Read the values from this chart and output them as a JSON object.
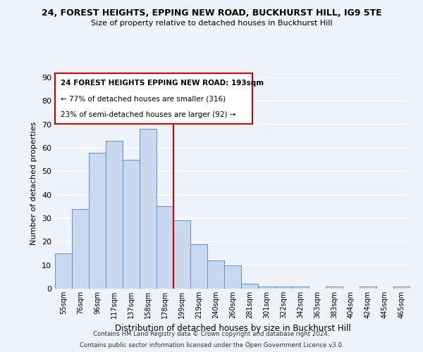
{
  "title": "24, FOREST HEIGHTS, EPPING NEW ROAD, BUCKHURST HILL, IG9 5TE",
  "subtitle": "Size of property relative to detached houses in Buckhurst Hill",
  "xlabel": "Distribution of detached houses by size in Buckhurst Hill",
  "ylabel": "Number of detached properties",
  "bar_color": "#c8d8ee",
  "bar_edge_color": "#6090c0",
  "bins": [
    "55sqm",
    "76sqm",
    "96sqm",
    "117sqm",
    "137sqm",
    "158sqm",
    "178sqm",
    "199sqm",
    "219sqm",
    "240sqm",
    "260sqm",
    "281sqm",
    "301sqm",
    "322sqm",
    "342sqm",
    "363sqm",
    "383sqm",
    "404sqm",
    "424sqm",
    "445sqm",
    "465sqm"
  ],
  "values": [
    15,
    34,
    58,
    63,
    55,
    68,
    35,
    29,
    19,
    12,
    10,
    2,
    1,
    1,
    1,
    0,
    1,
    0,
    1,
    0,
    1
  ],
  "ylim": [
    0,
    90
  ],
  "yticks": [
    0,
    10,
    20,
    30,
    40,
    50,
    60,
    70,
    80,
    90
  ],
  "annotation_line1": "24 FOREST HEIGHTS EPPING NEW ROAD: 193sqm",
  "annotation_line2": "← 77% of detached houses are smaller (316)",
  "annotation_line3": "23% of semi-detached houses are larger (92) →",
  "footer_line1": "Contains HM Land Registry data © Crown copyright and database right 2024.",
  "footer_line2": "Contains public sector information licensed under the Open Government Licence v3.0.",
  "background_color": "#eef2fb",
  "grid_color": "#ffffff",
  "annotation_box_color": "#ffffff",
  "annotation_box_edge": "#cc0000",
  "property_line_color": "#cc0000",
  "property_line_xindex": 6.5
}
